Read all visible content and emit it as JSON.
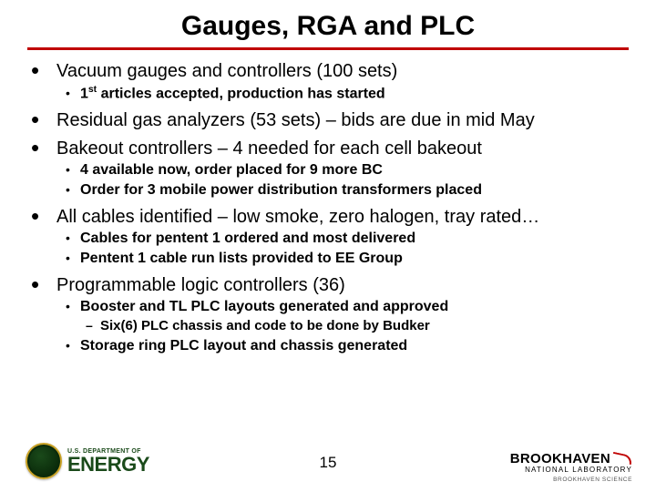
{
  "title": "Gauges, RGA and PLC",
  "colors": {
    "rule": "#c00000",
    "text": "#000000",
    "doe_green": "#1a4a1a",
    "doe_gold": "#c9a227",
    "bnl_red": "#c00000",
    "background": "#ffffff"
  },
  "typography": {
    "title_fontsize": 30,
    "l1_fontsize": 20,
    "l2_fontsize": 16,
    "l3_fontsize": 15,
    "l2_weight": "bold",
    "l3_weight": "bold",
    "footer_page_fontsize": 17
  },
  "bullets": [
    {
      "level": 1,
      "text": "Vacuum gauges and controllers (100 sets)"
    },
    {
      "level": 2,
      "html": "1<sup>st</sup> articles accepted, production has started"
    },
    {
      "level": 1,
      "text": "Residual gas analyzers (53 sets) – bids are due in mid May"
    },
    {
      "level": 1,
      "text": "Bakeout controllers – 4 needed for each cell bakeout"
    },
    {
      "level": 2,
      "text": "4 available now, order placed for 9 more BC"
    },
    {
      "level": 2,
      "text": "Order for 3 mobile power distribution transformers placed"
    },
    {
      "level": 1,
      "text": "All cables identified – low smoke, zero halogen, tray rated…"
    },
    {
      "level": 2,
      "text": "Cables for pentent 1 ordered and most delivered"
    },
    {
      "level": 2,
      "text": "Pentent 1 cable run lists provided to EE Group"
    },
    {
      "level": 1,
      "text": "Programmable logic controllers (36)"
    },
    {
      "level": 2,
      "text": "Booster and TL PLC layouts generated and approved"
    },
    {
      "level": 3,
      "text": "Six(6) PLC chassis and code to be done by Budker"
    },
    {
      "level": 2,
      "text": "Storage ring PLC layout and chassis generated"
    }
  ],
  "footer": {
    "page_number": "15",
    "doe_small": "U.S. DEPARTMENT OF",
    "doe_big": "ENERGY",
    "bnl_name": "BROOKHAVEN",
    "bnl_sub": "NATIONAL LABORATORY",
    "bnl_sci": "BROOKHAVEN SCIENCE"
  }
}
